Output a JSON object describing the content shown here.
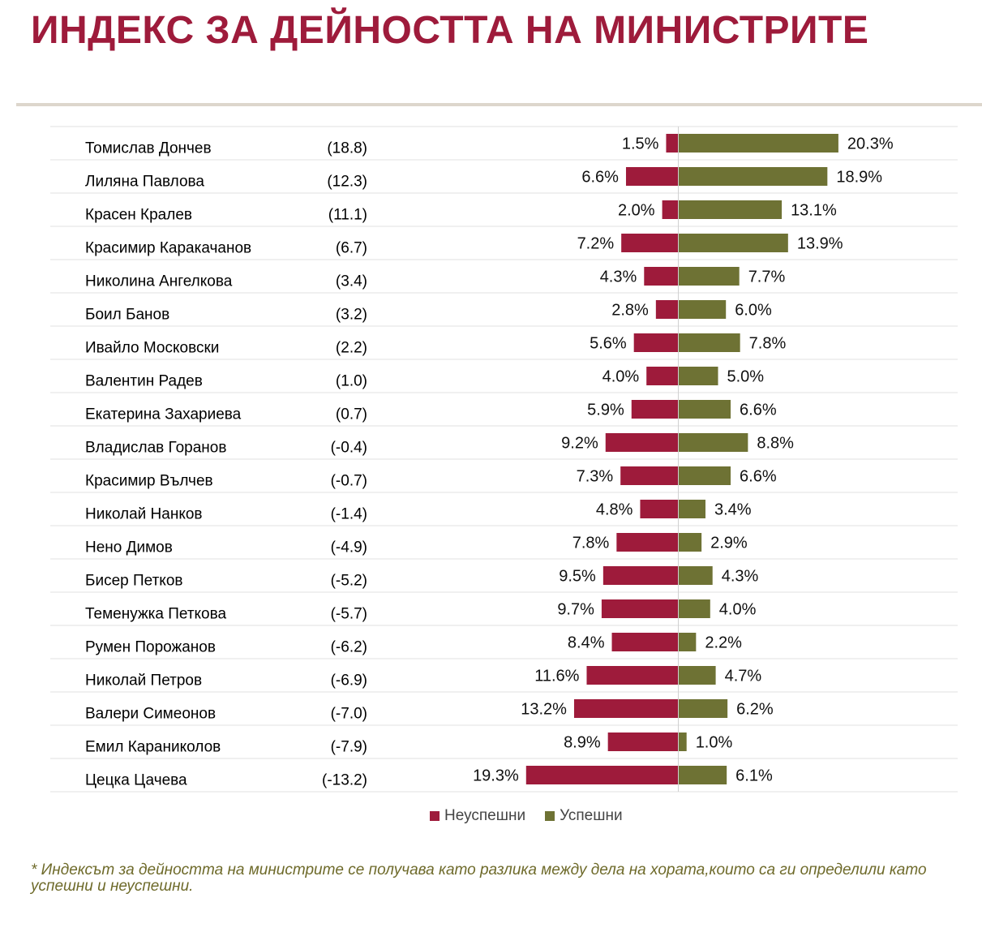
{
  "title": "ИНДЕКС ЗА ДЕЙНОСТТА НА МИНИСТРИТЕ",
  "footnote": "* Индексът за дейността на министрите се получава като разлика между дела на хората,които са ги определили като успешни и неуспешни.",
  "legend": {
    "unsuccessful": "Неуспешни",
    "successful": "Успешни"
  },
  "colors": {
    "title": "#9e1b3b",
    "unsuccessful": "#9e1b3b",
    "successful": "#6e7234",
    "footnote": "#6e6a2a"
  },
  "chart_data": {
    "type": "bar",
    "orientation": "horizontal-diverging",
    "categories": [
      "Томислав Дончев",
      "Лиляна Павлова",
      "Красен Кралев",
      "Красимир Каракачанов",
      "Николина Ангелкова",
      "Боил Банов",
      "Ивайло Московски",
      "Валентин Радев",
      "Екатерина Захариева",
      "Владислав Горанов",
      "Красимир Вълчев",
      "Николай Нанков",
      "Нено Димов",
      "Бисер Петков",
      "Теменужка Петкова",
      "Румен Порожанов",
      "Николай Петров",
      "Валери Симеонов",
      "Емил Караниколов",
      "Цецка Цачева"
    ],
    "index_labels": [
      "(18.8)",
      "(12.3)",
      "(11.1)",
      "(6.7)",
      "(3.4)",
      "(3.2)",
      "(2.2)",
      "(1.0)",
      "(0.7)",
      "(-0.4)",
      "(-0.7)",
      "(-1.4)",
      "(-4.9)",
      "(-5.2)",
      "(-5.7)",
      "(-6.2)",
      "(-6.9)",
      "(-7.0)",
      "(-7.9)",
      "(-13.2)"
    ],
    "series": [
      {
        "name": "Неуспешни",
        "values": [
          1.5,
          6.6,
          2.0,
          7.2,
          4.3,
          2.8,
          5.6,
          4.0,
          5.9,
          9.2,
          7.3,
          4.8,
          7.8,
          9.5,
          9.7,
          8.4,
          11.6,
          13.2,
          8.9,
          19.3
        ],
        "labels": [
          "1.5%",
          "6.6%",
          "2.0%",
          "7.2%",
          "4.3%",
          "2.8%",
          "5.6%",
          "4.0%",
          "5.9%",
          "9.2%",
          "7.3%",
          "4.8%",
          "7.8%",
          "9.5%",
          "9.7%",
          "8.4%",
          "11.6%",
          "13.2%",
          "8.9%",
          "19.3%"
        ]
      },
      {
        "name": "Успешни",
        "values": [
          20.3,
          18.9,
          13.1,
          13.9,
          7.7,
          6.0,
          7.8,
          5.0,
          6.6,
          8.8,
          6.6,
          3.4,
          2.9,
          4.3,
          4.0,
          2.2,
          4.7,
          6.2,
          1.0,
          6.1
        ],
        "labels": [
          "20.3%",
          "18.9%",
          "13.1%",
          "13.9%",
          "7.7%",
          "6.0%",
          "7.8%",
          "5.0%",
          "6.6%",
          "8.8%",
          "6.6%",
          "3.4%",
          "2.9%",
          "4.3%",
          "4.0%",
          "2.2%",
          "4.7%",
          "6.2%",
          "1.0%",
          "6.1%"
        ]
      }
    ],
    "legend_position": "bottom",
    "grid": false
  }
}
